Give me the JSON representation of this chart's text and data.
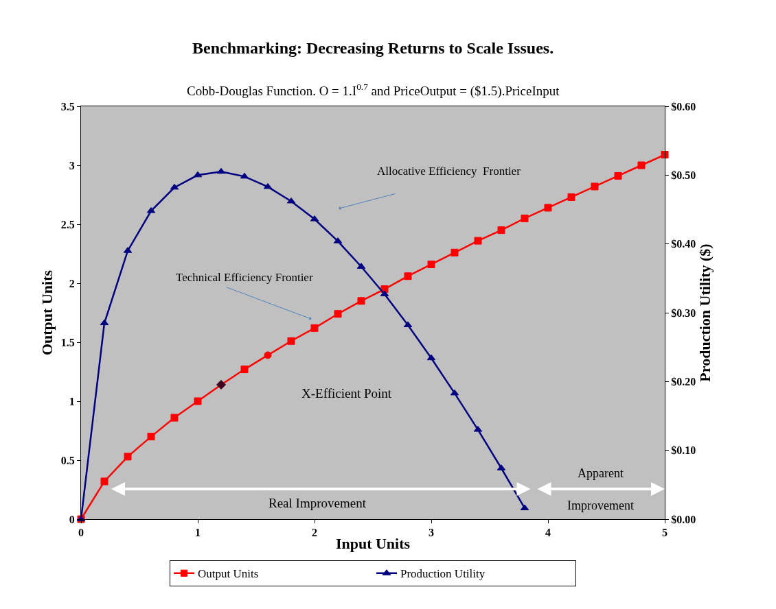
{
  "chart_data": {
    "type": "line",
    "title": "Benchmarking: Decreasing Returns to Scale Issues.",
    "subtitle": "Cobb-Douglas Function. O = 1.I$^{0.7}$ and PriceOutput = ($1.5).PriceInput",
    "xlabel": "Input Units",
    "ylabel": "Output Units",
    "y2label": "Production Utility ($)",
    "x": [
      0,
      0.2,
      0.4,
      0.6,
      0.8,
      1,
      1.2,
      1.4,
      1.6,
      1.8,
      2,
      2.2,
      2.4,
      2.6,
      2.8,
      3,
      3.2,
      3.4,
      3.6,
      3.8,
      4,
      4.2,
      4.4,
      4.6,
      4.8,
      5
    ],
    "series": [
      {
        "name": "Output Units",
        "color": "#ff0000",
        "marker": "square",
        "values": [
          0,
          0.32,
          0.53,
          0.7,
          0.86,
          1.0,
          1.14,
          1.27,
          1.39,
          1.51,
          1.62,
          1.74,
          1.85,
          1.95,
          2.06,
          2.16,
          2.26,
          2.36,
          2.45,
          2.55,
          2.64,
          2.73,
          2.82,
          2.91,
          3.0,
          3.09
        ]
      },
      {
        "name": "Production Utility",
        "color": "#000080",
        "marker": "triangle",
        "axis": "y2",
        "values": [
          0,
          0.285,
          0.39,
          0.448,
          0.482,
          0.5,
          0.505,
          0.498,
          0.483,
          0.462,
          0.436,
          0.404,
          0.367,
          0.327,
          0.282,
          0.234,
          0.183,
          0.13,
          0.074,
          0.016,
          null,
          null,
          null,
          null,
          null,
          null
        ]
      },
      {
        "type": "scatter",
        "color": "#400020",
        "marker": "diamond",
        "x": [
          1.2
        ],
        "values": [
          1.14
        ]
      },
      {
        "type": "scatter",
        "color": "#ff0000",
        "marker": "circle",
        "x": [
          1.6
        ],
        "values": [
          1.39
        ]
      }
    ],
    "xlim": [
      0,
      5
    ],
    "xticks": [
      0,
      1,
      2,
      3,
      4,
      5
    ],
    "ylim": [
      0,
      3.5
    ],
    "yticks": [
      0,
      0.5,
      1,
      1.5,
      2,
      2.5,
      3,
      3.5
    ],
    "y2lim": [
      0,
      0.6
    ],
    "y2ticks": [
      {
        "value": 0,
        "label": "$0.00"
      },
      {
        "value": 0.1,
        "label": "$0.10"
      },
      {
        "value": 0.2,
        "label": "$0.20"
      },
      {
        "value": 0.3,
        "label": "$0.30"
      },
      {
        "value": 0.4,
        "label": "$0.40"
      },
      {
        "value": 0.5,
        "label": "$0.50"
      },
      {
        "value": 0.6,
        "label": "$0.60"
      }
    ],
    "annotations": [
      "Allocative Efficiency  Frontier",
      "Technical Efficiency Frontier",
      "X-Efficient Point",
      "Real Improvement",
      "Apparent\nImprovement"
    ],
    "grid": false,
    "legend": "bottom",
    "line_style": "solid"
  }
}
